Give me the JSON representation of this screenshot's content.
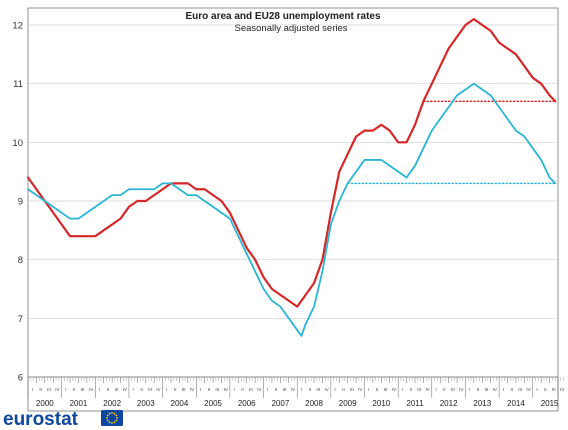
{
  "chart_data": {
    "type": "line",
    "title": "Euro area and EU28 unemployment rates",
    "subtitle": "Seasonally adjusted series",
    "xlabel": "",
    "ylabel": "",
    "ylim": [
      6,
      12.2
    ],
    "y_ticks": [
      "6",
      "7",
      "8",
      "9",
      "10",
      "11",
      "12"
    ],
    "x_years": [
      "2000",
      "2001",
      "2002",
      "2003",
      "2004",
      "2005",
      "2006",
      "2007",
      "2008",
      "2009",
      "2010",
      "2011",
      "2012",
      "2013",
      "2014",
      "2015"
    ],
    "quarter_labels": [
      "I",
      "II",
      "III",
      "IV"
    ],
    "x_range": [
      2000.0,
      2015.667
    ],
    "grid": "horizontal",
    "series": [
      {
        "color": "#d62728",
        "points": [
          [
            2000.0,
            9.4
          ],
          [
            2000.25,
            9.2
          ],
          [
            2000.5,
            9.0
          ],
          [
            2000.75,
            8.8
          ],
          [
            2001.0,
            8.6
          ],
          [
            2001.25,
            8.4
          ],
          [
            2001.5,
            8.4
          ],
          [
            2001.75,
            8.4
          ],
          [
            2002.0,
            8.4
          ],
          [
            2002.25,
            8.5
          ],
          [
            2002.5,
            8.6
          ],
          [
            2002.75,
            8.7
          ],
          [
            2003.0,
            8.9
          ],
          [
            2003.25,
            9.0
          ],
          [
            2003.5,
            9.0
          ],
          [
            2003.75,
            9.1
          ],
          [
            2004.0,
            9.2
          ],
          [
            2004.25,
            9.3
          ],
          [
            2004.5,
            9.3
          ],
          [
            2004.75,
            9.3
          ],
          [
            2005.0,
            9.2
          ],
          [
            2005.25,
            9.2
          ],
          [
            2005.5,
            9.1
          ],
          [
            2005.75,
            9.0
          ],
          [
            2006.0,
            8.8
          ],
          [
            2006.25,
            8.5
          ],
          [
            2006.5,
            8.2
          ],
          [
            2006.75,
            8.0
          ],
          [
            2007.0,
            7.7
          ],
          [
            2007.25,
            7.5
          ],
          [
            2007.5,
            7.4
          ],
          [
            2007.75,
            7.3
          ],
          [
            2008.0,
            7.2
          ],
          [
            2008.25,
            7.4
          ],
          [
            2008.5,
            7.6
          ],
          [
            2008.75,
            8.0
          ],
          [
            2009.0,
            8.8
          ],
          [
            2009.25,
            9.5
          ],
          [
            2009.5,
            9.8
          ],
          [
            2009.75,
            10.1
          ],
          [
            2010.0,
            10.2
          ],
          [
            2010.25,
            10.2
          ],
          [
            2010.5,
            10.3
          ],
          [
            2010.75,
            10.2
          ],
          [
            2011.0,
            10.0
          ],
          [
            2011.25,
            10.0
          ],
          [
            2011.5,
            10.3
          ],
          [
            2011.75,
            10.7
          ],
          [
            2012.0,
            11.0
          ],
          [
            2012.25,
            11.3
          ],
          [
            2012.5,
            11.6
          ],
          [
            2012.75,
            11.8
          ],
          [
            2013.0,
            12.0
          ],
          [
            2013.25,
            12.1
          ],
          [
            2013.5,
            12.0
          ],
          [
            2013.75,
            11.9
          ],
          [
            2014.0,
            11.7
          ],
          [
            2014.25,
            11.6
          ],
          [
            2014.5,
            11.5
          ],
          [
            2014.75,
            11.3
          ],
          [
            2015.0,
            11.1
          ],
          [
            2015.25,
            11.0
          ],
          [
            2015.5,
            10.8
          ],
          [
            2015.667,
            10.7
          ]
        ]
      },
      {
        "color": "#29b6d6",
        "points": [
          [
            2000.0,
            9.2
          ],
          [
            2000.25,
            9.1
          ],
          [
            2000.5,
            9.0
          ],
          [
            2000.75,
            8.9
          ],
          [
            2001.0,
            8.8
          ],
          [
            2001.25,
            8.7
          ],
          [
            2001.5,
            8.7
          ],
          [
            2001.75,
            8.8
          ],
          [
            2002.0,
            8.9
          ],
          [
            2002.25,
            9.0
          ],
          [
            2002.5,
            9.1
          ],
          [
            2002.75,
            9.1
          ],
          [
            2003.0,
            9.2
          ],
          [
            2003.25,
            9.2
          ],
          [
            2003.5,
            9.2
          ],
          [
            2003.75,
            9.2
          ],
          [
            2004.0,
            9.3
          ],
          [
            2004.25,
            9.3
          ],
          [
            2004.5,
            9.2
          ],
          [
            2004.75,
            9.1
          ],
          [
            2005.0,
            9.1
          ],
          [
            2005.25,
            9.0
          ],
          [
            2005.5,
            8.9
          ],
          [
            2005.75,
            8.8
          ],
          [
            2006.0,
            8.7
          ],
          [
            2006.25,
            8.4
          ],
          [
            2006.5,
            8.1
          ],
          [
            2006.75,
            7.8
          ],
          [
            2007.0,
            7.5
          ],
          [
            2007.25,
            7.3
          ],
          [
            2007.5,
            7.2
          ],
          [
            2007.75,
            7.0
          ],
          [
            2008.0,
            6.8
          ],
          [
            2008.125,
            6.7
          ],
          [
            2008.25,
            6.9
          ],
          [
            2008.5,
            7.2
          ],
          [
            2008.75,
            7.8
          ],
          [
            2009.0,
            8.6
          ],
          [
            2009.25,
            9.0
          ],
          [
            2009.5,
            9.3
          ],
          [
            2009.75,
            9.5
          ],
          [
            2010.0,
            9.7
          ],
          [
            2010.25,
            9.7
          ],
          [
            2010.5,
            9.7
          ],
          [
            2010.75,
            9.6
          ],
          [
            2011.0,
            9.5
          ],
          [
            2011.25,
            9.4
          ],
          [
            2011.5,
            9.6
          ],
          [
            2011.75,
            9.9
          ],
          [
            2012.0,
            10.2
          ],
          [
            2012.25,
            10.4
          ],
          [
            2012.5,
            10.6
          ],
          [
            2012.75,
            10.8
          ],
          [
            2013.0,
            10.9
          ],
          [
            2013.25,
            11.0
          ],
          [
            2013.5,
            10.9
          ],
          [
            2013.75,
            10.8
          ],
          [
            2014.0,
            10.6
          ],
          [
            2014.25,
            10.4
          ],
          [
            2014.5,
            10.2
          ],
          [
            2014.75,
            10.1
          ],
          [
            2015.0,
            9.9
          ],
          [
            2015.25,
            9.7
          ],
          [
            2015.5,
            9.4
          ],
          [
            2015.667,
            9.3
          ]
        ]
      }
    ],
    "reference_lines": [
      {
        "color": "#d62728",
        "y": 10.7,
        "x_from": 2011.75,
        "x_to": 2015.667,
        "style": "dotted"
      },
      {
        "color": "#29b6d6",
        "y": 9.3,
        "x_from": 2009.5,
        "x_to": 2015.667,
        "style": "dotted"
      }
    ]
  },
  "logo": {
    "text": "eurostat",
    "flag_color": "#0e47a1",
    "star_color": "#ffcc00"
  }
}
